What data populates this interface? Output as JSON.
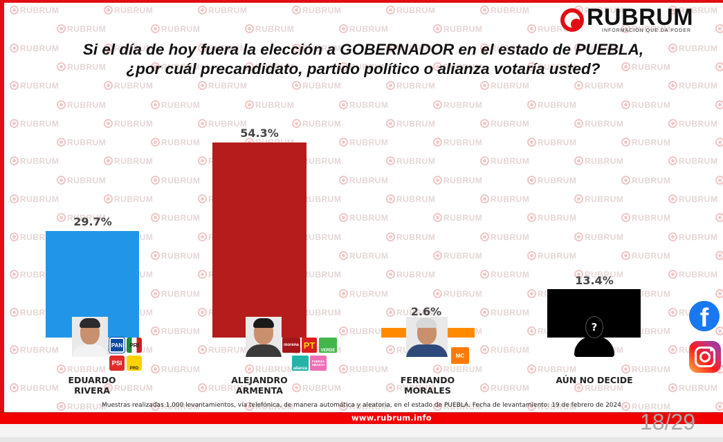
{
  "brand": {
    "name": "RUBRUM",
    "tagline": "INFORMACIÓN QUE DA PODER",
    "watermark": "RUBRUM",
    "website": "www.rubrum.info",
    "accent_color": "#e10d12"
  },
  "title": {
    "line1": "Si el día de hoy fuera la elección a GOBERNADOR en el estado de PUEBLA,",
    "line2": "¿por cuál precandidato, partido político o alianza votaría usted?"
  },
  "candidates": [
    {
      "name_line1": "EDUARDO",
      "name_line2": "RIVERA",
      "value_label": "29.7%",
      "color": "#2196e8",
      "parties": [
        "PAN",
        "PRI",
        "PSI",
        "PRD"
      ]
    },
    {
      "name_line1": "ALEJANDRO",
      "name_line2": "ARMENTA",
      "value_label": "54.3%",
      "color": "#b71c1c",
      "parties": [
        "morena",
        "PT",
        "VERDE",
        "alianza",
        "FUERZA MÉXICO"
      ]
    },
    {
      "name_line1": "FERNANDO",
      "name_line2": "MORALES",
      "value_label": "2.6%",
      "color": "#ff8a00",
      "parties": [
        "MC"
      ]
    },
    {
      "name_line1": "AÚN NO DECIDE",
      "name_line2": "",
      "value_label": "13.4%",
      "color": "#000000",
      "parties": []
    }
  ],
  "unknown_icon": "?",
  "footnote": "Muestras realizadas 1,000 levantamientos, vía telefónica, de manera automática y aleatoria, en el estado de PUEBLA. Fecha de levantamiento: 19 de febrero de 2024",
  "social": {
    "facebook_icon": "f",
    "instagram_icon": "instagram"
  },
  "page_counter": "18/29",
  "chart_data": {
    "type": "bar",
    "title": "Si el día de hoy fuera la elección a GOBERNADOR en el estado de PUEBLA, ¿por cuál precandidato, partido político o alianza votaría usted?",
    "categories": [
      "EDUARDO RIVERA",
      "ALEJANDRO ARMENTA",
      "FERNANDO MORALES",
      "AÚN NO DECIDE"
    ],
    "values": [
      29.7,
      54.3,
      2.6,
      13.4
    ],
    "colors": [
      "#2196e8",
      "#b71c1c",
      "#ff8a00",
      "#000000"
    ],
    "xlabel": "",
    "ylabel": "",
    "unit": "%",
    "ylim": [
      0,
      60
    ],
    "grid": false,
    "legend": "none"
  }
}
